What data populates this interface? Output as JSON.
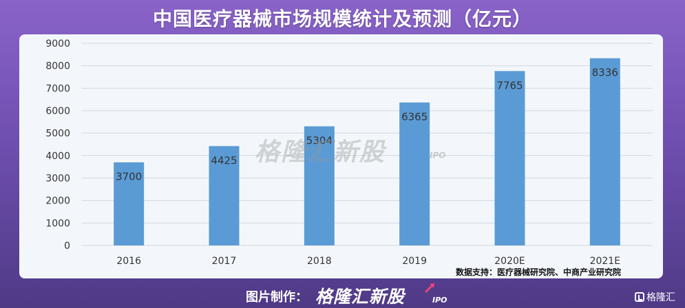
{
  "title": "中国医疗器械市场规模统计及预测（亿元）",
  "watermark": "格隆汇新股",
  "watermark_suffix": "IPO",
  "source": "数据支持：医疗器械研究院、中商产业研究院",
  "footer": {
    "label": "图片制作：",
    "brand": "格隆汇新股",
    "brand_suffix": "IPO",
    "corner_logo": "格隆汇"
  },
  "colors": {
    "bar": "#5b9bd5",
    "grid": "#d0d7de",
    "axis_text": "#333333"
  },
  "chart_data": {
    "type": "bar",
    "categories": [
      "2016",
      "2017",
      "2018",
      "2019",
      "2020E",
      "2021E"
    ],
    "values": [
      3700,
      4425,
      5304,
      6365,
      7765,
      8336
    ],
    "ylim": [
      0,
      9000
    ],
    "yticks": [
      0,
      1000,
      2000,
      3000,
      4000,
      5000,
      6000,
      7000,
      8000,
      9000
    ],
    "grid": true,
    "legend": "none"
  }
}
